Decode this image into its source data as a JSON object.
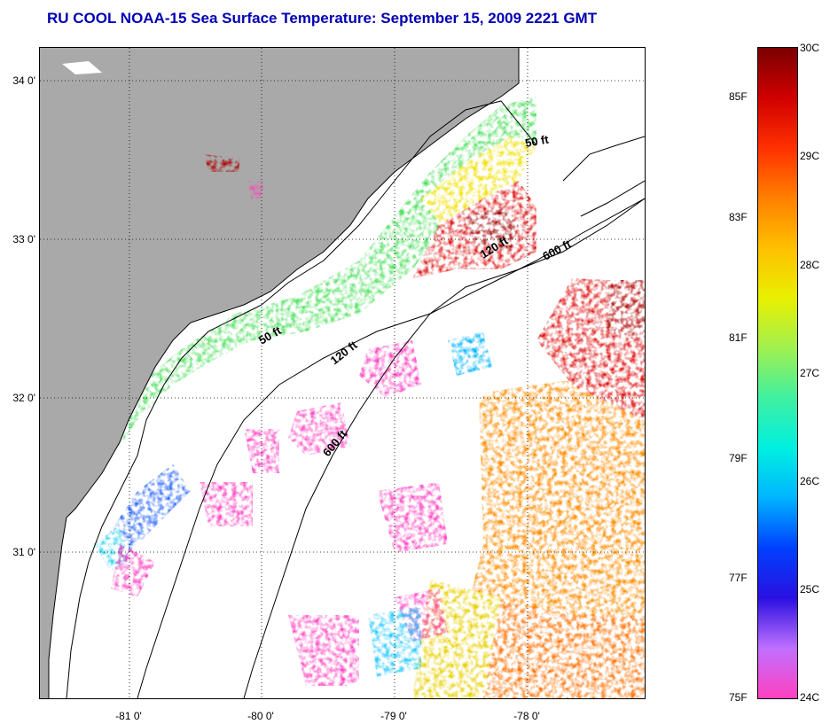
{
  "title": "RU COOL  NOAA-15  Sea Surface Temperature:  September 15, 2009 2221 GMT",
  "map": {
    "lat_labels": [
      "34 0'",
      "33 0'",
      "32 0'",
      "31 0'"
    ],
    "lon_labels": [
      "-81 0'",
      "-80 0'",
      "-79 0'",
      "-78 0'"
    ],
    "isobath_labels": [
      "50 ft",
      "50 ft",
      "120 ft",
      "120 ft",
      "600 ft",
      "600 ft"
    ],
    "colors": {
      "land": "#a9a9a9",
      "cloud": "#ffffff",
      "coast": "#000000"
    }
  },
  "colorbar": {
    "fahrenheit_labels": [
      "85F",
      "83F",
      "81F",
      "79F",
      "77F",
      "75F"
    ],
    "celsius_labels": [
      "30C",
      "29C",
      "28C",
      "27C",
      "26C",
      "25C",
      "24C"
    ],
    "range_c": [
      24,
      30
    ],
    "range_f": [
      75,
      86
    ],
    "gradient_colors": [
      "#ff40c0",
      "#c070ff",
      "#2a10e0",
      "#0040ff",
      "#00b4ff",
      "#00f0e0",
      "#40f0a0",
      "#a0f050",
      "#e8f000",
      "#ffc000",
      "#ff8000",
      "#ff3000",
      "#d00000",
      "#7a0000"
    ]
  }
}
